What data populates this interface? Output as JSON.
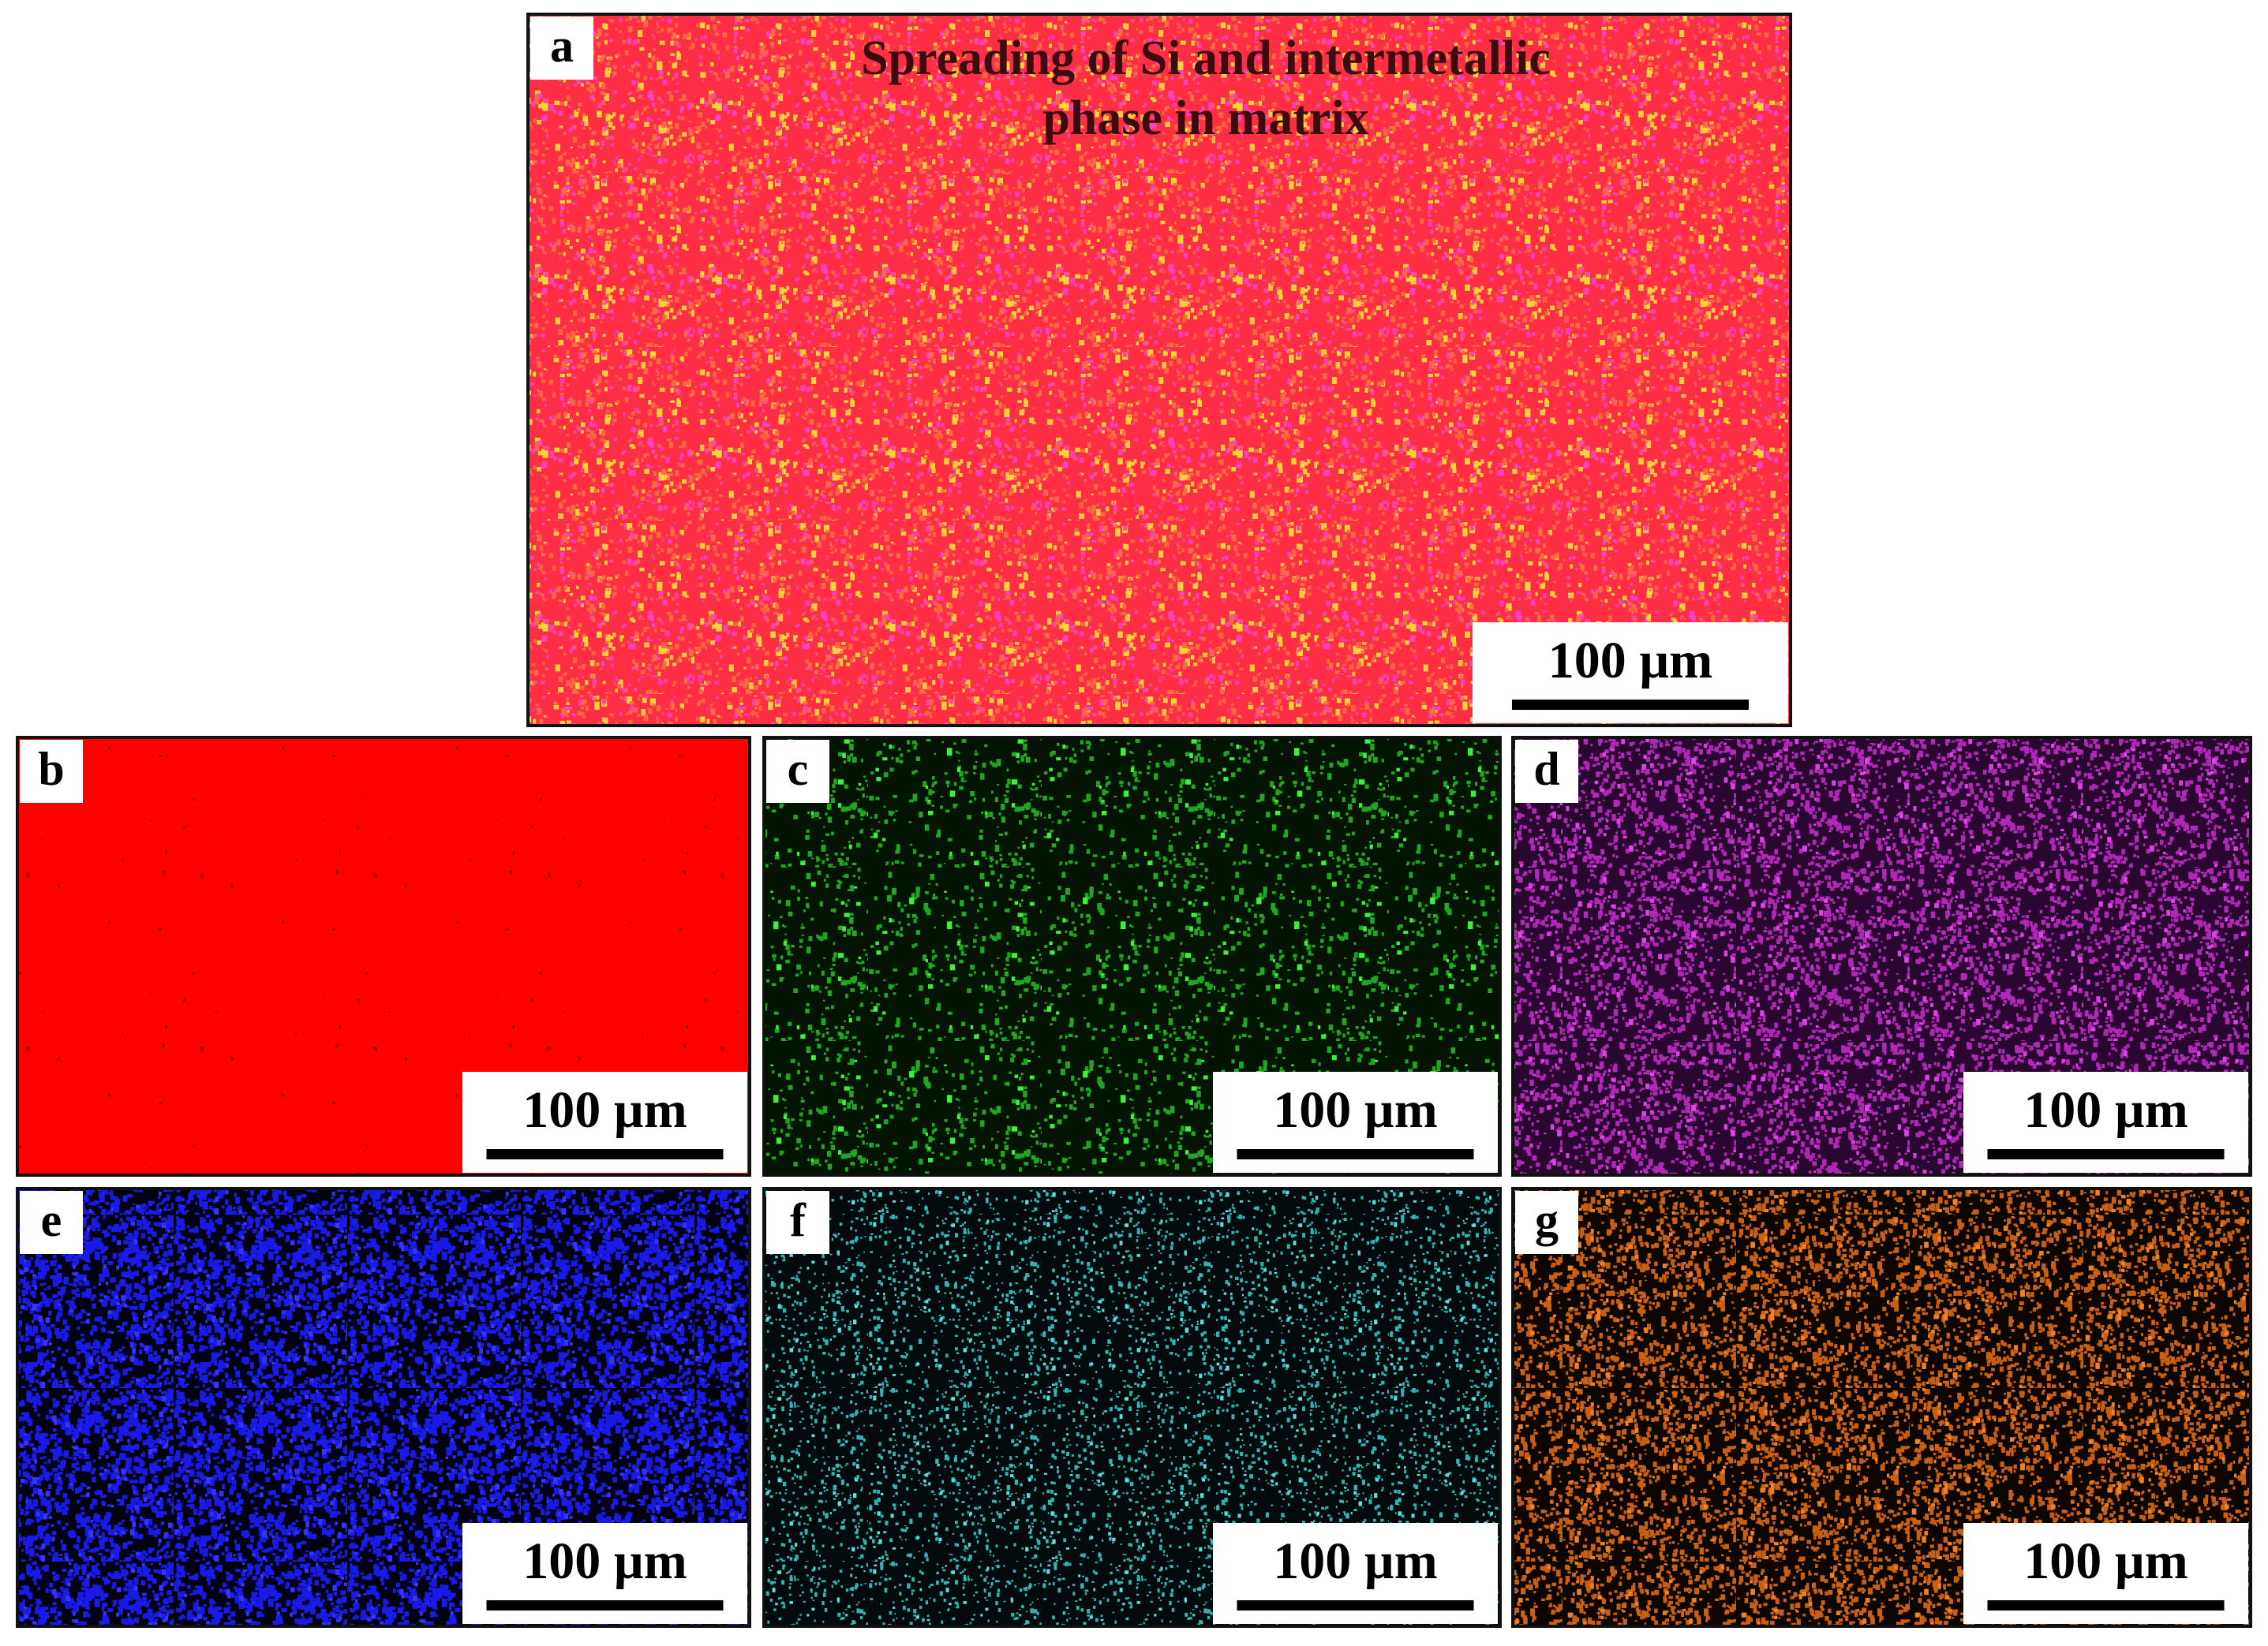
{
  "title_lines": [
    "Spreading of Si and intermetallic",
    "phase in matrix"
  ],
  "panels": [
    {
      "label": "a",
      "scale_bar": "100 µm"
    },
    {
      "label": "b",
      "scale_bar": "100 µm"
    },
    {
      "label": "c",
      "scale_bar": "100 µm"
    },
    {
      "label": "d",
      "scale_bar": "100 µm"
    },
    {
      "label": "e",
      "scale_bar": "100 µm"
    },
    {
      "label": "f",
      "scale_bar": "100 µm"
    },
    {
      "label": "g",
      "scale_bar": "100 µm"
    }
  ]
}
